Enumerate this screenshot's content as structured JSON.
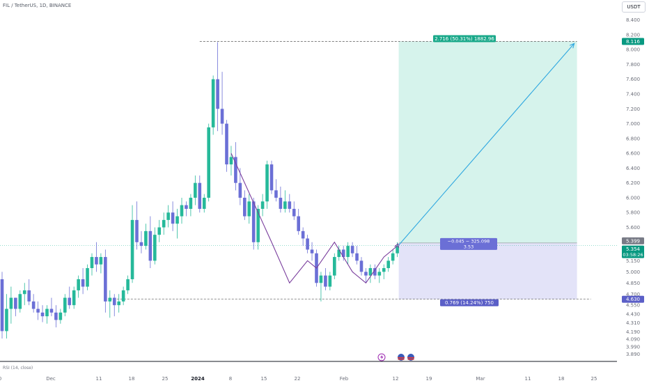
{
  "header": {
    "symbol_line": "FIL / TetherUS, 1D, BINANCE",
    "currency": "USDT"
  },
  "rsi_label": "RSI (14, close)",
  "chart_data": {
    "type": "candlestick",
    "title": "",
    "ylim": [
      3.8,
      8.5
    ],
    "yticks": [
      "3.890",
      "3.990",
      "4.090",
      "4.190",
      "4.310",
      "4.430",
      "4.550",
      "4.700",
      "4.850",
      "5.000",
      "5.150",
      "5.300",
      "5.400",
      "5.600",
      "5.800",
      "6.000",
      "6.200",
      "6.400",
      "6.600",
      "6.800",
      "7.000",
      "7.200",
      "7.400",
      "7.600",
      "7.800",
      "8.000",
      "8.200",
      "8.400"
    ],
    "xticks": [
      "0",
      "Dec",
      "11",
      "18",
      "25",
      "2024",
      "8",
      "15",
      "22",
      "Feb",
      "12",
      "19",
      "Mar",
      "11",
      "18",
      "25"
    ],
    "candles": [
      [
        4.9,
        5.0,
        4.1,
        4.2
      ],
      [
        4.2,
        4.7,
        4.1,
        4.5
      ],
      [
        4.5,
        4.8,
        4.3,
        4.65
      ],
      [
        4.65,
        4.65,
        4.4,
        4.5
      ],
      [
        4.5,
        4.75,
        4.45,
        4.7
      ],
      [
        4.7,
        4.85,
        4.55,
        4.75
      ],
      [
        4.75,
        4.9,
        4.55,
        4.6
      ],
      [
        4.6,
        4.7,
        4.45,
        4.5
      ],
      [
        4.5,
        4.6,
        4.35,
        4.45
      ],
      [
        4.45,
        4.55,
        4.32,
        4.4
      ],
      [
        4.4,
        4.55,
        4.3,
        4.5
      ],
      [
        4.5,
        4.65,
        4.4,
        4.45
      ],
      [
        4.45,
        4.55,
        4.25,
        4.35
      ],
      [
        4.35,
        4.5,
        4.3,
        4.45
      ],
      [
        4.45,
        4.7,
        4.4,
        4.65
      ],
      [
        4.65,
        4.8,
        4.5,
        4.55
      ],
      [
        4.55,
        4.8,
        4.5,
        4.75
      ],
      [
        4.75,
        4.95,
        4.65,
        4.9
      ],
      [
        4.9,
        5.05,
        4.7,
        4.8
      ],
      [
        4.8,
        5.1,
        4.75,
        5.05
      ],
      [
        5.05,
        5.25,
        4.95,
        5.2
      ],
      [
        5.2,
        5.4,
        5.0,
        5.1
      ],
      [
        5.1,
        5.25,
        4.98,
        5.2
      ],
      [
        5.2,
        5.3,
        4.45,
        4.6
      ],
      [
        4.6,
        4.75,
        4.38,
        4.65
      ],
      [
        4.65,
        4.7,
        4.4,
        4.55
      ],
      [
        4.55,
        4.7,
        4.45,
        4.6
      ],
      [
        4.6,
        4.8,
        4.55,
        4.75
      ],
      [
        4.75,
        4.95,
        4.7,
        4.9
      ],
      [
        4.9,
        5.9,
        4.85,
        5.7
      ],
      [
        5.7,
        5.95,
        5.3,
        5.4
      ],
      [
        5.4,
        5.55,
        5.25,
        5.35
      ],
      [
        5.35,
        5.65,
        5.3,
        5.55
      ],
      [
        5.55,
        5.75,
        5.05,
        5.15
      ],
      [
        5.15,
        5.6,
        5.1,
        5.5
      ],
      [
        5.5,
        5.7,
        5.4,
        5.6
      ],
      [
        5.6,
        5.8,
        5.5,
        5.7
      ],
      [
        5.7,
        5.9,
        5.6,
        5.8
      ],
      [
        5.8,
        5.95,
        5.55,
        5.65
      ],
      [
        5.65,
        5.85,
        5.45,
        5.75
      ],
      [
        5.75,
        6.0,
        5.65,
        5.9
      ],
      [
        5.9,
        5.95,
        5.75,
        5.85
      ],
      [
        5.85,
        6.05,
        5.75,
        6.0
      ],
      [
        6.0,
        6.3,
        5.9,
        6.2
      ],
      [
        6.2,
        6.3,
        5.8,
        5.85
      ],
      [
        5.85,
        6.05,
        5.8,
        6.0
      ],
      [
        6.0,
        7.0,
        5.95,
        6.95
      ],
      [
        6.95,
        7.65,
        6.85,
        7.6
      ],
      [
        7.6,
        8.1,
        6.9,
        7.2
      ],
      [
        7.2,
        7.7,
        6.85,
        7.0
      ],
      [
        7.0,
        7.05,
        6.35,
        6.45
      ],
      [
        6.45,
        6.7,
        6.3,
        6.55
      ],
      [
        6.55,
        6.75,
        6.1,
        6.2
      ],
      [
        6.2,
        6.4,
        5.9,
        6.0
      ],
      [
        6.0,
        6.1,
        5.7,
        5.75
      ],
      [
        5.75,
        6.05,
        5.65,
        5.95
      ],
      [
        5.95,
        6.0,
        5.3,
        5.4
      ],
      [
        5.4,
        5.9,
        5.3,
        5.85
      ],
      [
        5.85,
        6.05,
        5.75,
        5.95
      ],
      [
        5.95,
        6.5,
        5.85,
        6.45
      ],
      [
        6.45,
        6.5,
        6.05,
        6.1
      ],
      [
        6.1,
        6.25,
        5.95,
        6.0
      ],
      [
        6.0,
        6.15,
        5.8,
        5.85
      ],
      [
        5.85,
        6.1,
        5.8,
        5.95
      ],
      [
        5.95,
        6.05,
        5.8,
        5.85
      ],
      [
        5.85,
        5.95,
        5.7,
        5.75
      ],
      [
        5.75,
        5.85,
        5.5,
        5.55
      ],
      [
        5.55,
        5.6,
        5.35,
        5.45
      ],
      [
        5.45,
        5.5,
        5.25,
        5.3
      ],
      [
        5.3,
        5.4,
        5.15,
        5.25
      ],
      [
        5.25,
        5.3,
        4.8,
        4.85
      ],
      [
        4.85,
        5.0,
        4.6,
        4.95
      ],
      [
        4.95,
        5.05,
        4.75,
        4.8
      ],
      [
        4.8,
        5.0,
        4.75,
        4.95
      ],
      [
        4.95,
        5.25,
        4.9,
        5.2
      ],
      [
        5.2,
        5.35,
        5.15,
        5.3
      ],
      [
        5.3,
        5.35,
        5.15,
        5.2
      ],
      [
        5.2,
        5.4,
        5.1,
        5.35
      ],
      [
        5.35,
        5.4,
        5.2,
        5.25
      ],
      [
        5.25,
        5.35,
        5.1,
        5.15
      ],
      [
        5.15,
        5.2,
        4.95,
        5.0
      ],
      [
        5.0,
        5.05,
        4.85,
        4.95
      ],
      [
        4.95,
        5.1,
        4.85,
        5.05
      ],
      [
        5.05,
        5.1,
        4.9,
        4.95
      ],
      [
        4.95,
        5.05,
        4.85,
        5.0
      ],
      [
        5.0,
        5.1,
        4.9,
        5.05
      ],
      [
        5.05,
        5.2,
        5.0,
        5.15
      ],
      [
        5.15,
        5.3,
        5.1,
        5.25
      ],
      [
        5.25,
        5.4,
        5.2,
        5.35
      ]
    ],
    "pattern_line": [
      [
        51,
        6.6
      ],
      [
        60,
        5.4
      ],
      [
        64,
        4.85
      ],
      [
        68,
        5.15
      ],
      [
        70,
        5.05
      ],
      [
        74,
        5.4
      ],
      [
        78,
        5.0
      ],
      [
        81,
        4.85
      ],
      [
        85,
        5.2
      ],
      [
        88,
        5.35
      ]
    ],
    "projection": {
      "from_index": 88,
      "from_price": 5.36,
      "to_index": 128,
      "to_price": 8.11
    },
    "levels": {
      "target": {
        "price": 8.11,
        "label": "8.116",
        "color": "#089981"
      },
      "entry": {
        "price": 5.39,
        "label": "5.399",
        "color": "#787b86"
      },
      "current": {
        "price": 5.354,
        "label": "5.354",
        "color": "#089981",
        "countdown": "03:58:26"
      },
      "stop": {
        "price": 4.63,
        "label": "4.630",
        "color": "#5b5fc7"
      }
    },
    "position": {
      "profit_label": "2.716 (50.31%) 1882.96",
      "loss_label": "0.769 (14.24%) 750",
      "entry_label": "−0.045 − 325.098",
      "ratio_label": "3.53",
      "profit_color": "#d6f3ec",
      "loss_color": "#e3e3f8"
    },
    "colors": {
      "up": "#26b99a",
      "down": "#6b6fd6",
      "pattern": "#7a3e9d",
      "arrow": "#2ea7e0"
    }
  }
}
